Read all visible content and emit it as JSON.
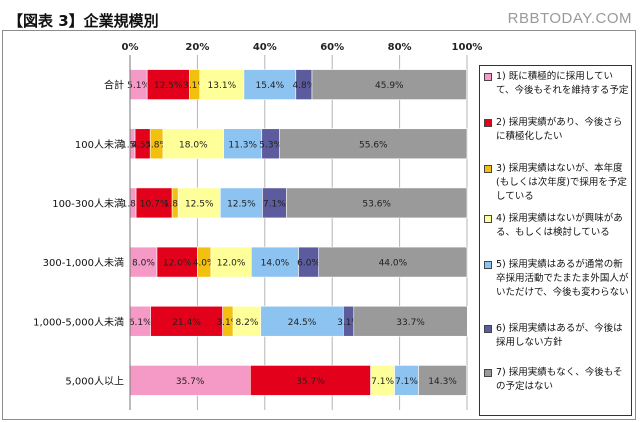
{
  "header": {
    "title": "【図表 3】企業規模別",
    "watermark": "RBBTODAY.COM"
  },
  "colors": {
    "series": [
      "#f59ac6",
      "#e2001a",
      "#f3c00f",
      "#ffff99",
      "#8dc3f0",
      "#5b5b9e",
      "#9a9a9a"
    ]
  },
  "chart_data": {
    "type": "bar",
    "orientation": "horizontal",
    "stacked": true,
    "percent_stacked": true,
    "title": "【図表 3】企業規模別",
    "xlim": [
      0,
      100
    ],
    "x_tick_labels": [
      "0%",
      "20%",
      "40%",
      "60%",
      "80%",
      "100%"
    ],
    "grid": true,
    "legend_position": "right",
    "categories": [
      "合計",
      "100人未満",
      "100-300人未満",
      "300-1,000人未満",
      "1,000-5,000人未満",
      "5,000人以上"
    ],
    "series": [
      {
        "name": "1) 既に積極的に採用していて、今後もそれを維持する予定",
        "values": [
          5.1,
          1.5,
          1.8,
          8.0,
          6.1,
          35.7
        ]
      },
      {
        "name": "2) 採用実績があり、今後さらに積極化したい",
        "values": [
          12.5,
          4.5,
          10.7,
          12.0,
          21.4,
          35.7
        ]
      },
      {
        "name": "3) 採用実績はないが、本年度(もしくは次年度)で採用を予定している",
        "values": [
          3.1,
          3.8,
          1.8,
          4.0,
          3.1,
          0
        ]
      },
      {
        "name": "4) 採用実績はないが興味がある、もしくは検討している",
        "values": [
          13.1,
          18.0,
          12.5,
          12.0,
          8.2,
          7.1
        ]
      },
      {
        "name": "5) 採用実績はあるが通常の新卒採用活動でたまたま外国人がいただけで、今後も変わらない",
        "values": [
          15.4,
          11.3,
          12.5,
          14.0,
          24.5,
          7.1
        ]
      },
      {
        "name": "6) 採用実績はあるが、今後は採用しない方針",
        "values": [
          4.8,
          5.3,
          7.1,
          6.0,
          3.1,
          0
        ]
      },
      {
        "name": "7) 採用実績もなく、今後もその予定はない",
        "values": [
          45.9,
          55.6,
          53.6,
          44.0,
          33.7,
          14.3
        ]
      }
    ],
    "data_labels": [
      [
        "5.1%",
        "12.5%",
        "3.1%",
        "13.1%",
        "15.4%",
        "4.8%",
        "45.9%"
      ],
      [
        "1.5%",
        "4.5%",
        "3.8%",
        "18.0%",
        "11.3%",
        "5.3%",
        "55.6%"
      ],
      [
        "1.8%",
        "10.7%",
        "1.8%",
        "12.5%",
        "12.5%",
        "7.1%",
        "53.6%"
      ],
      [
        "8.0%",
        "12.0%",
        "4.0%",
        "12.0%",
        "14.0%",
        "6.0%",
        "44.0%"
      ],
      [
        "6.1%",
        "21.4%",
        "3.1%",
        "8.2%",
        "24.5%",
        "3.1%",
        "33.7%"
      ],
      [
        "35.7%",
        "35.7%",
        "",
        "7.1%",
        "7.1%",
        "",
        "14.3%"
      ]
    ]
  }
}
